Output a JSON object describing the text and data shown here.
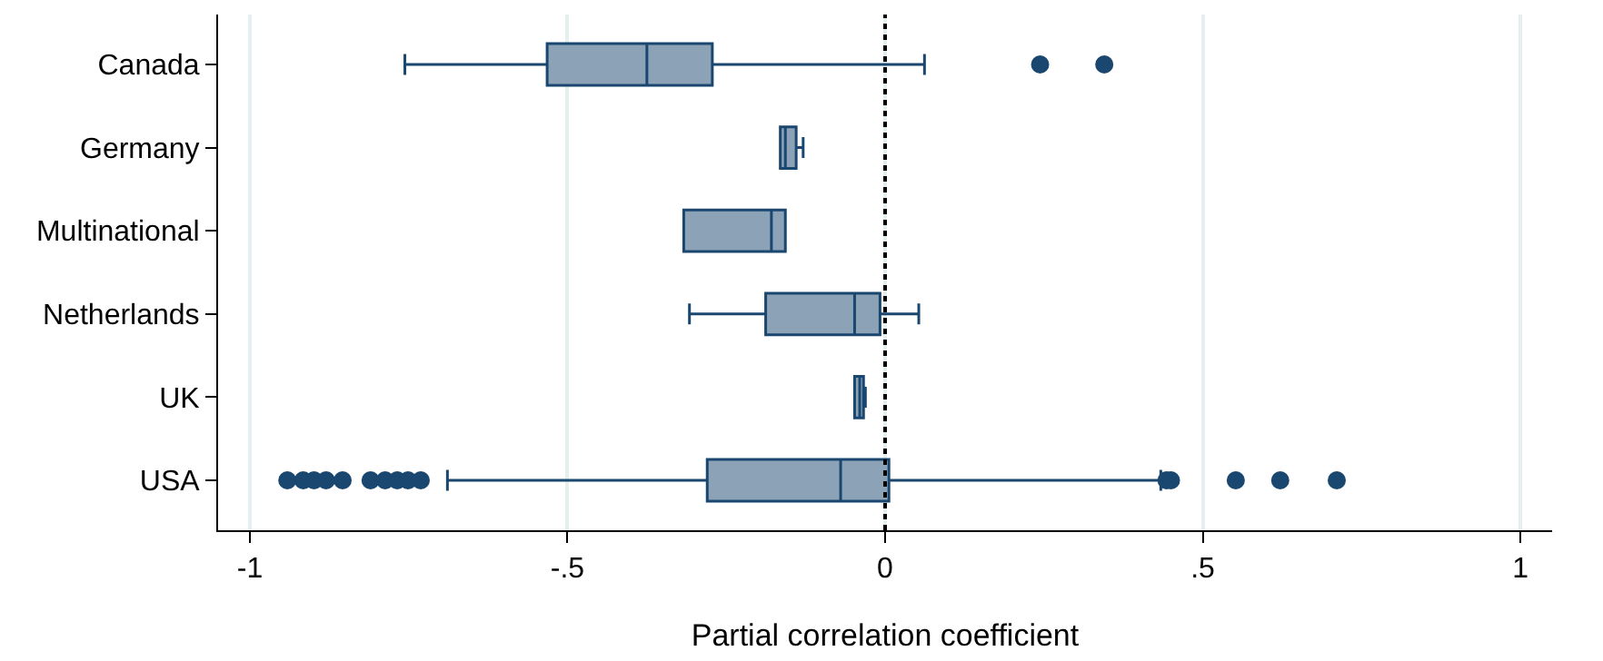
{
  "chart_data": {
    "type": "box",
    "orientation": "horizontal",
    "xlabel": "Partial correlation coefficient",
    "categories": [
      "Canada",
      "Germany",
      "Multinational",
      "Netherlands",
      "UK",
      "USA"
    ],
    "boxes": [
      {
        "low": -0.756,
        "q1": -0.532,
        "median": -0.375,
        "q3": -0.272,
        "high": 0.062,
        "outliers": [
          0.244,
          0.345
        ]
      },
      {
        "low": -0.165,
        "q1": -0.165,
        "median": -0.157,
        "q3": -0.14,
        "high": -0.129
      },
      {
        "low": -0.317,
        "q1": -0.317,
        "median": -0.179,
        "q3": -0.157,
        "high": -0.157
      },
      {
        "low": -0.308,
        "q1": -0.188,
        "median": -0.048,
        "q3": -0.008,
        "high": 0.053
      },
      {
        "low": -0.048,
        "q1": -0.048,
        "median": -0.04,
        "q3": -0.034,
        "high": -0.031
      },
      {
        "low": -0.689,
        "q1": -0.28,
        "median": -0.07,
        "q3": 0.006,
        "high": 0.434,
        "outliers": [
          -0.941,
          -0.916,
          -0.899,
          -0.88,
          -0.854,
          -0.81,
          -0.787,
          -0.768,
          -0.751,
          -0.731,
          0.443,
          0.45,
          0.552,
          0.622,
          0.711
        ]
      }
    ],
    "color": "#1a476f",
    "xlim": [
      -1.05,
      1.05
    ],
    "xticks": [
      {
        "value": -1,
        "label": "-1"
      },
      {
        "value": -0.5,
        "label": "-.5"
      },
      {
        "value": 0,
        "label": "0"
      },
      {
        "value": 0.5,
        "label": ".5"
      },
      {
        "value": 1,
        "label": "1"
      }
    ],
    "grid": "x",
    "ref_lines": [
      {
        "axis": "x",
        "value": 0,
        "color": "#000000",
        "line_style": "dotted"
      }
    ]
  }
}
